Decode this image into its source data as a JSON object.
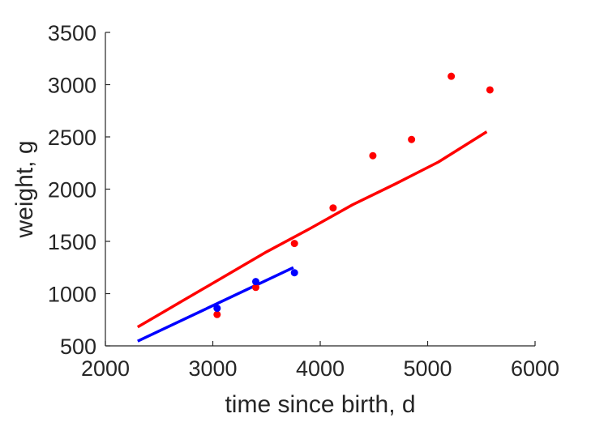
{
  "chart_data": {
    "type": "line",
    "title": "",
    "xlabel": "time since birth, d",
    "ylabel": "weight, g",
    "xlim": [
      2000,
      6000
    ],
    "ylim": [
      500,
      3500
    ],
    "xticks": [
      2000,
      3000,
      4000,
      5000,
      6000
    ],
    "yticks": [
      500,
      1000,
      1500,
      2000,
      2500,
      3000,
      3500
    ],
    "grid": false,
    "legend": "none",
    "series": [
      {
        "kind": "line",
        "color": "#ff0000",
        "x": [
          2300,
          2700,
          3100,
          3500,
          3900,
          4300,
          4700,
          5100,
          5550
        ],
        "y": [
          680,
          920,
          1160,
          1400,
          1620,
          1850,
          2050,
          2260,
          2550
        ]
      },
      {
        "kind": "line",
        "color": "#0000ff",
        "x": [
          2300,
          3750
        ],
        "y": [
          545,
          1250
        ]
      },
      {
        "kind": "scatter",
        "color": "#ff0000",
        "x": [
          3040,
          3400,
          3760,
          4120,
          4490,
          4850,
          5220,
          5580
        ],
        "y": [
          800,
          1060,
          1480,
          1820,
          2320,
          2475,
          3080,
          2950
        ]
      },
      {
        "kind": "scatter",
        "color": "#0000ff",
        "x": [
          3040,
          3400,
          3760
        ],
        "y": [
          860,
          1115,
          1200
        ]
      }
    ]
  }
}
